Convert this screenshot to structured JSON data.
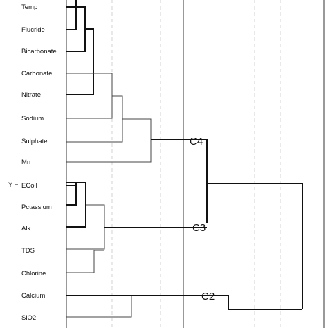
{
  "diagram": {
    "type": "dendrogram",
    "axis_label": "Y",
    "leaves": [
      "Temp",
      "Flucride",
      "Bicarbonate",
      "Carbonate",
      "Nitrate",
      "Sodium",
      "Sulphate",
      "Mn",
      "ECoil",
      "Pctassium",
      "Alk",
      "TDS",
      "Chlorine",
      "Calcium",
      "SiO2"
    ],
    "clusters": [
      {
        "label": "C4"
      },
      {
        "label": "C3"
      },
      {
        "label": "C2"
      }
    ]
  }
}
